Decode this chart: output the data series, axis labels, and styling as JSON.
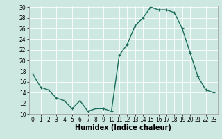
{
  "x": [
    0,
    1,
    2,
    3,
    4,
    5,
    6,
    7,
    8,
    9,
    10,
    11,
    12,
    13,
    14,
    15,
    16,
    17,
    18,
    19,
    20,
    21,
    22,
    23
  ],
  "y": [
    17.5,
    15,
    14.5,
    13,
    12.5,
    11,
    12.5,
    10.5,
    11,
    11,
    10.5,
    21,
    23,
    26.5,
    28,
    30,
    29.5,
    29.5,
    29,
    26,
    21.5,
    17,
    14.5,
    14
  ],
  "line_color": "#1a6b5a",
  "marker": "+",
  "marker_size": 3,
  "bg_color": "#cde8e0",
  "grid_color": "#ffffff",
  "xlabel": "Humidex (Indice chaleur)",
  "ylim": [
    10,
    30
  ],
  "xlim": [
    -0.5,
    23.5
  ],
  "yticks": [
    10,
    12,
    14,
    16,
    18,
    20,
    22,
    24,
    26,
    28,
    30
  ],
  "xticks": [
    0,
    1,
    2,
    3,
    4,
    5,
    6,
    7,
    8,
    9,
    10,
    11,
    12,
    13,
    14,
    15,
    16,
    17,
    18,
    19,
    20,
    21,
    22,
    23
  ],
  "tick_fontsize": 5.5,
  "xlabel_fontsize": 7,
  "linewidth": 1.0,
  "markeredgewidth": 0.8
}
